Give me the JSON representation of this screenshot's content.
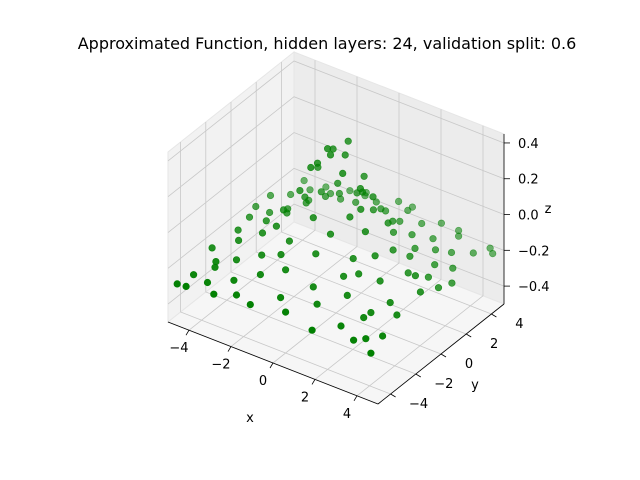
{
  "chart_data": {
    "type": "scatter",
    "title": "Approximated Function, hidden layers: 24, validation split: 0.6",
    "xlabel": "x",
    "ylabel": "y",
    "zlabel": "z",
    "xlim": [
      -5,
      5
    ],
    "ylim": [
      -5,
      5
    ],
    "zlim": [
      -0.5,
      0.45
    ],
    "xticks": [
      "−4",
      "−2",
      "0",
      "2",
      "4"
    ],
    "yticks": [
      "−4",
      "−2",
      "0",
      "2",
      "4"
    ],
    "zticks": [
      "−0.4",
      "−0.2",
      "0.0",
      "0.2",
      "0.4"
    ],
    "grid": true,
    "color": "#008000",
    "points": [
      [
        -4.8,
        -4.6,
        -0.3
      ],
      [
        -4.5,
        -3.8,
        -0.28
      ],
      [
        -4.2,
        -4.9,
        -0.27
      ],
      [
        -3.9,
        -3.1,
        -0.25
      ],
      [
        -3.6,
        -4.2,
        -0.26
      ],
      [
        -3.3,
        -2.4,
        -0.22
      ],
      [
        -3.0,
        -4.7,
        -0.27
      ],
      [
        -2.7,
        -3.6,
        -0.24
      ],
      [
        -2.4,
        -1.9,
        -0.18
      ],
      [
        -2.1,
        -4.4,
        -0.25
      ],
      [
        -1.8,
        -3.0,
        -0.2
      ],
      [
        -1.5,
        -1.2,
        -0.1
      ],
      [
        -1.2,
        -4.8,
        -0.24
      ],
      [
        -0.9,
        -2.5,
        -0.16
      ],
      [
        -0.6,
        -0.8,
        0.05
      ],
      [
        -0.3,
        -3.9,
        -0.21
      ],
      [
        0.0,
        -1.6,
        -0.08
      ],
      [
        0.3,
        -4.5,
        -0.23
      ],
      [
        0.6,
        -2.8,
        -0.17
      ],
      [
        0.9,
        -0.4,
        0.1
      ],
      [
        1.2,
        -3.5,
        -0.2
      ],
      [
        1.5,
        -1.9,
        -0.12
      ],
      [
        1.8,
        -4.9,
        -0.24
      ],
      [
        2.1,
        -2.6,
        -0.16
      ],
      [
        2.4,
        -0.9,
        -0.02
      ],
      [
        2.7,
        -4.1,
        -0.22
      ],
      [
        3.0,
        -1.5,
        -0.1
      ],
      [
        3.3,
        -3.3,
        -0.19
      ],
      [
        3.6,
        -4.6,
        -0.23
      ],
      [
        3.9,
        -2.2,
        -0.14
      ],
      [
        4.2,
        -0.7,
        -0.06
      ],
      [
        4.5,
        -3.8,
        -0.21
      ],
      [
        4.8,
        -1.3,
        -0.09
      ],
      [
        4.6,
        -4.9,
        -0.24
      ],
      [
        4.0,
        -4.3,
        -0.22
      ],
      [
        -4.7,
        -2.0,
        -0.24
      ],
      [
        -4.3,
        -0.6,
        -0.2
      ],
      [
        -3.8,
        -1.4,
        -0.19
      ],
      [
        -3.2,
        -0.2,
        -0.12
      ],
      [
        -2.8,
        0.5,
        -0.08
      ],
      [
        -2.3,
        -0.9,
        -0.07
      ],
      [
        -1.9,
        0.3,
        0.08
      ],
      [
        -1.4,
        0.9,
        0.2
      ],
      [
        -1.0,
        0.2,
        0.28
      ],
      [
        -0.5,
        0.6,
        0.36
      ],
      [
        -0.2,
        -0.1,
        0.38
      ],
      [
        0.2,
        0.4,
        0.37
      ],
      [
        0.5,
        -0.3,
        0.32
      ],
      [
        0.8,
        0.9,
        0.25
      ],
      [
        1.1,
        0.1,
        0.24
      ],
      [
        1.4,
        0.6,
        0.18
      ],
      [
        1.7,
        -0.5,
        0.06
      ],
      [
        2.0,
        0.8,
        0.05
      ],
      [
        2.6,
        0.2,
        -0.04
      ],
      [
        3.1,
        0.7,
        -0.08
      ],
      [
        3.5,
        -0.1,
        -0.11
      ],
      [
        4.1,
        0.5,
        -0.14
      ],
      [
        4.7,
        0.3,
        -0.16
      ],
      [
        -4.6,
        0.8,
        -0.22
      ],
      [
        -4.0,
        1.4,
        -0.2
      ],
      [
        -3.5,
        2.0,
        -0.19
      ],
      [
        -3.0,
        1.1,
        -0.14
      ],
      [
        -2.5,
        1.8,
        -0.1
      ],
      [
        -2.0,
        2.5,
        -0.08
      ],
      [
        -1.6,
        1.5,
        0.02
      ],
      [
        -1.1,
        2.1,
        0.0
      ],
      [
        -0.7,
        1.3,
        0.12
      ],
      [
        -0.2,
        2.0,
        0.05
      ],
      [
        0.3,
        1.6,
        0.1
      ],
      [
        0.7,
        2.4,
        -0.02
      ],
      [
        1.0,
        1.3,
        0.05
      ],
      [
        1.5,
        2.0,
        -0.03
      ],
      [
        1.9,
        1.4,
        -0.04
      ],
      [
        2.3,
        2.2,
        -0.08
      ],
      [
        2.8,
        1.6,
        -0.1
      ],
      [
        3.3,
        2.4,
        -0.13
      ],
      [
        3.8,
        1.5,
        -0.14
      ],
      [
        4.3,
        2.1,
        -0.17
      ],
      [
        4.8,
        1.2,
        -0.18
      ],
      [
        -4.8,
        2.8,
        -0.22
      ],
      [
        -4.2,
        3.4,
        -0.22
      ],
      [
        -3.7,
        4.1,
        -0.21
      ],
      [
        -3.1,
        3.0,
        -0.18
      ],
      [
        -2.6,
        3.9,
        -0.17
      ],
      [
        -2.1,
        4.6,
        -0.17
      ],
      [
        -1.7,
        3.2,
        -0.12
      ],
      [
        -1.2,
        4.3,
        -0.14
      ],
      [
        -0.8,
        2.9,
        -0.08
      ],
      [
        -0.3,
        3.7,
        -0.1
      ],
      [
        0.1,
        4.8,
        -0.14
      ],
      [
        0.5,
        3.1,
        -0.08
      ],
      [
        0.9,
        4.2,
        -0.12
      ],
      [
        1.3,
        2.9,
        -0.09
      ],
      [
        1.8,
        3.8,
        -0.13
      ],
      [
        2.2,
        4.7,
        -0.16
      ],
      [
        2.7,
        3.2,
        -0.14
      ],
      [
        3.2,
        4.4,
        -0.17
      ],
      [
        3.7,
        3.0,
        -0.16
      ],
      [
        4.2,
        3.9,
        -0.19
      ],
      [
        4.7,
        4.6,
        -0.21
      ],
      [
        -4.4,
        4.8,
        -0.23
      ],
      [
        -3.3,
        4.7,
        -0.21
      ],
      [
        -1.5,
        4.9,
        -0.17
      ],
      [
        0.7,
        4.9,
        -0.15
      ],
      [
        2.9,
        4.9,
        -0.18
      ],
      [
        4.4,
        4.9,
        -0.21
      ],
      [
        -4.9,
        1.8,
        -0.23
      ],
      [
        -4.1,
        -2.7,
        -0.25
      ],
      [
        -2.9,
        -1.0,
        -0.13
      ],
      [
        -1.3,
        -2.2,
        -0.11
      ],
      [
        0.4,
        -1.1,
        0.02
      ],
      [
        1.6,
        -1.3,
        -0.05
      ],
      [
        3.4,
        -2.9,
        -0.18
      ],
      [
        4.4,
        -2.5,
        -0.17
      ],
      [
        -0.4,
        0.0,
        0.4
      ],
      [
        0.1,
        0.8,
        0.42
      ],
      [
        -0.9,
        -0.5,
        0.3
      ],
      [
        1.3,
        -0.2,
        0.15
      ],
      [
        -2.2,
        1.2,
        -0.02
      ],
      [
        2.1,
        -1.7,
        -0.09
      ]
    ]
  }
}
